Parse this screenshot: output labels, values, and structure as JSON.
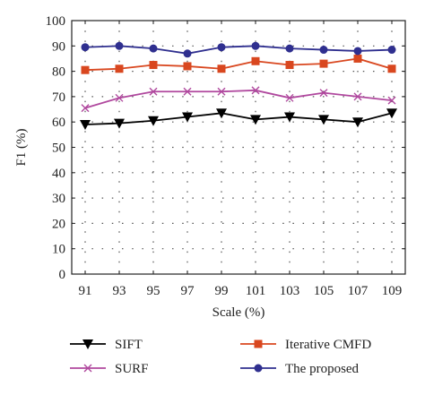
{
  "chart_data": {
    "type": "line",
    "title": "",
    "xlabel": "Scale (%)",
    "ylabel": "F1 (%)",
    "x": [
      91,
      93,
      95,
      97,
      99,
      101,
      103,
      105,
      107,
      109
    ],
    "x_tick_labels": [
      "91",
      "93",
      "95",
      "97",
      "99",
      "101",
      "103",
      "105",
      "107",
      "109"
    ],
    "ylim": [
      0,
      100
    ],
    "y_ticks": [
      0,
      10,
      20,
      30,
      40,
      50,
      60,
      70,
      80,
      90,
      100
    ],
    "y_tick_labels": [
      "0",
      "10",
      "20",
      "30",
      "40",
      "50",
      "60",
      "70",
      "80",
      "90",
      "100"
    ],
    "grid": true,
    "legend_position": "bottom",
    "series": [
      {
        "name": "SIFT",
        "marker": "triangle-down",
        "color": "#000000",
        "values": [
          59,
          59.5,
          60.5,
          62,
          63.5,
          61,
          62,
          61,
          60,
          63.5
        ]
      },
      {
        "name": "SURF",
        "marker": "x",
        "color": "#b0489e",
        "values": [
          65.5,
          69.5,
          72,
          72,
          72,
          72.5,
          69.5,
          71.5,
          70,
          68.5
        ]
      },
      {
        "name": "Iterative CMFD",
        "marker": "square",
        "color": "#d9471f",
        "values": [
          80.5,
          81,
          82.5,
          82,
          81,
          84,
          82.5,
          83,
          85,
          81
        ]
      },
      {
        "name": "The proposed",
        "marker": "circle",
        "color": "#2f2f8f",
        "values": [
          89.5,
          90,
          89,
          87,
          89.5,
          90,
          89,
          88.5,
          88,
          88.5
        ]
      }
    ]
  }
}
